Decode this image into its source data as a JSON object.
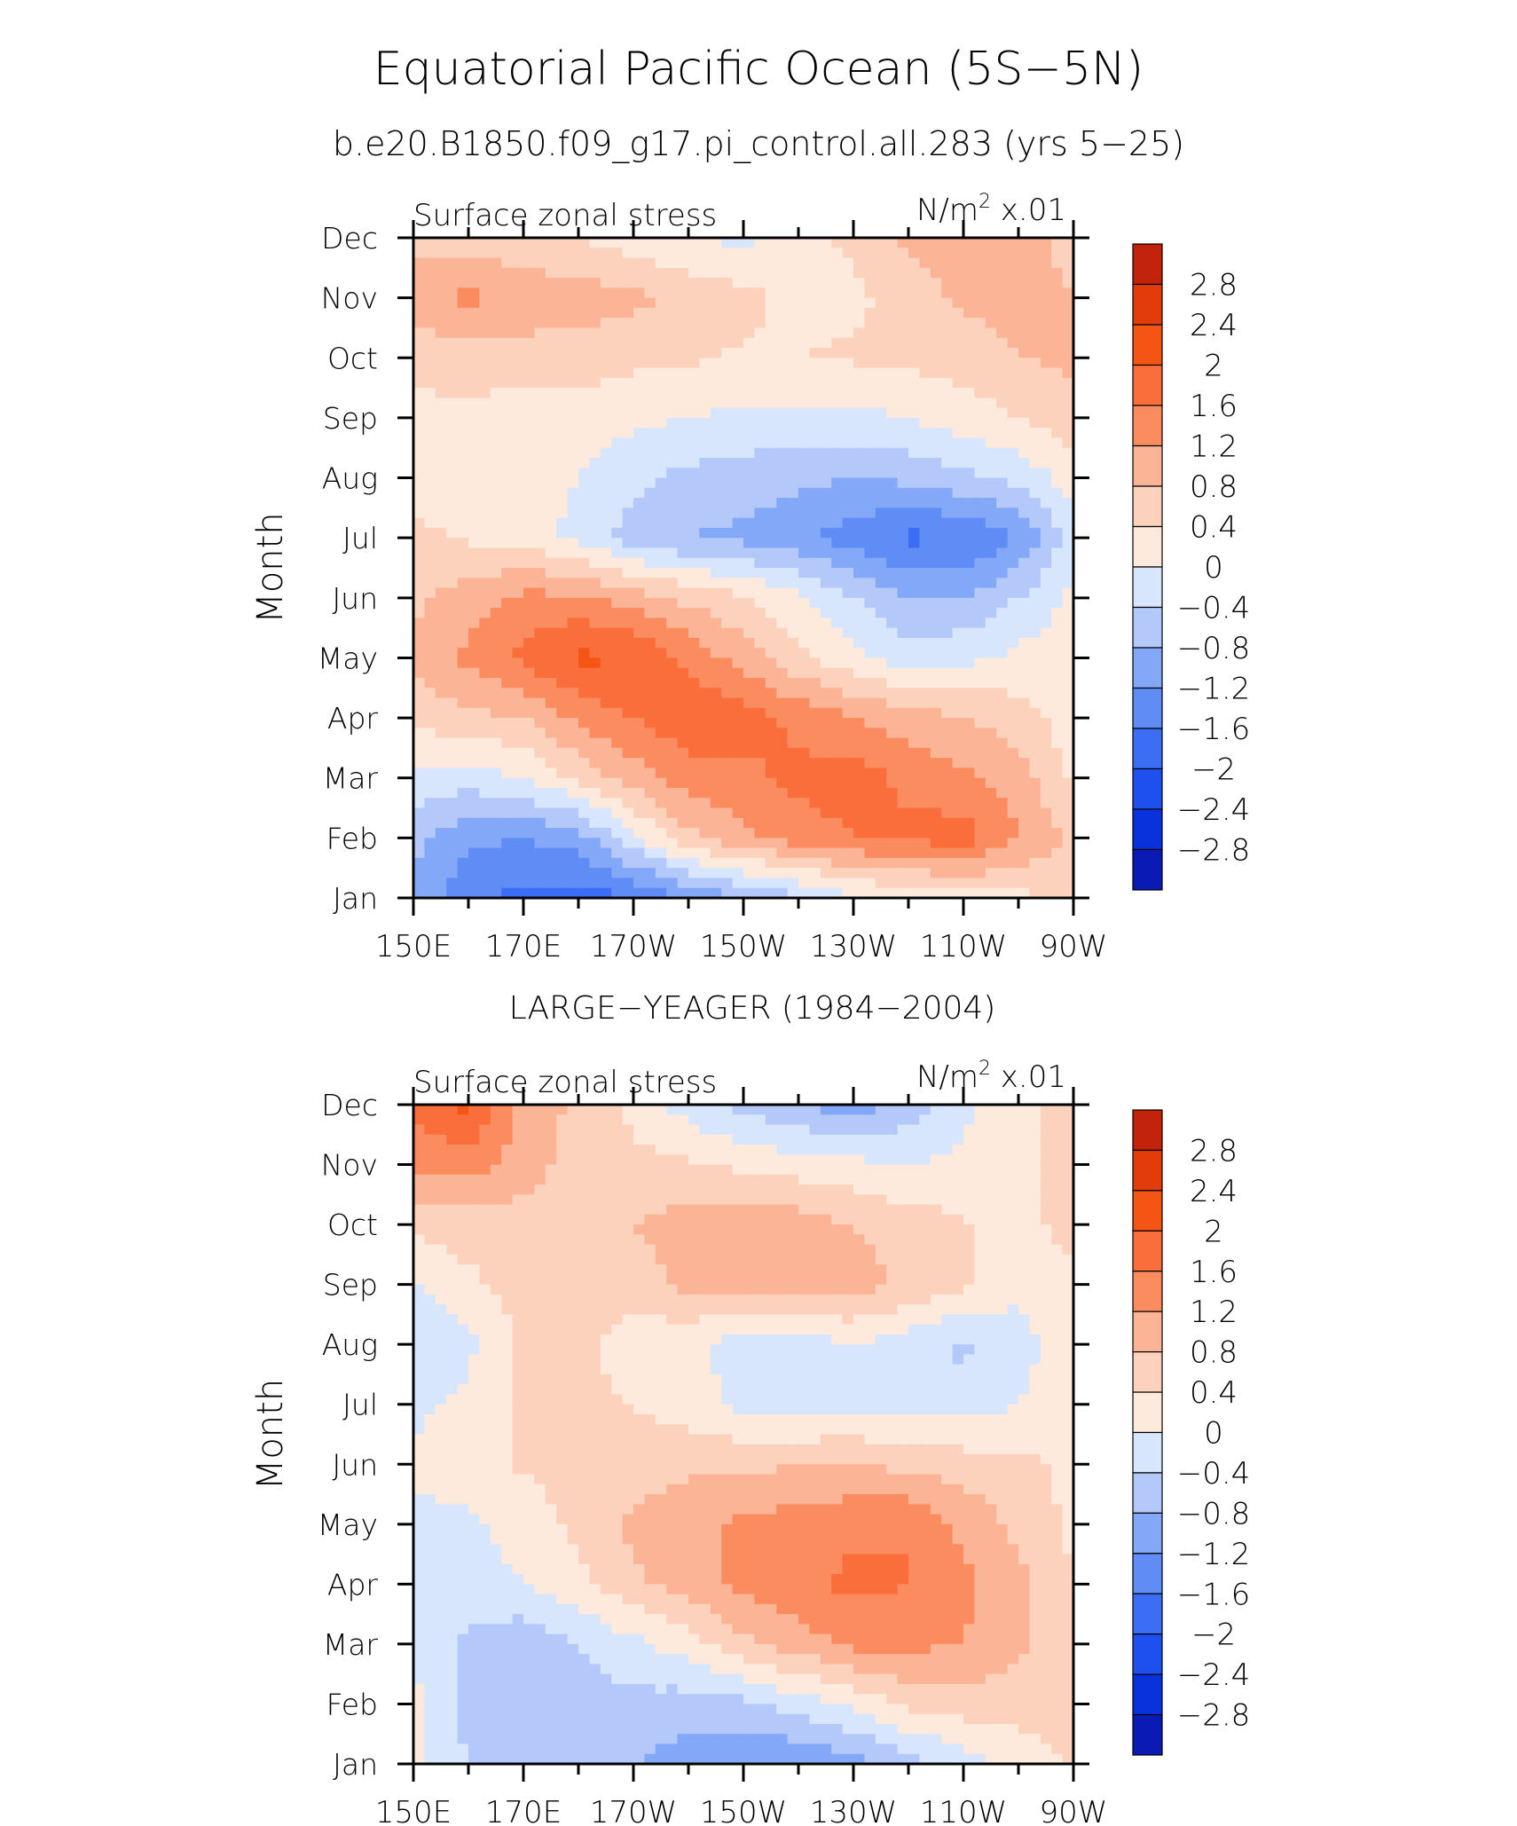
{
  "figure": {
    "title": "Equatorial Pacific Ocean (5S−5N)",
    "subtitle": "b.e20.B1850.f09_g17.pi_control.all.283 (yrs 5−25)"
  },
  "palette": {
    "level_colors": [
      "#0a0a78",
      "#0a1ab4",
      "#0a32dc",
      "#1e50f0",
      "#3c6ef5",
      "#5f8cf5",
      "#82a8f7",
      "#b4c8fa",
      "#d7e6fc",
      "#fdeadc",
      "#fcd2bc",
      "#fcb496",
      "#fa8c5f",
      "#fa6e3c",
      "#f55514",
      "#e13c0a",
      "#c3230a",
      "#8c0a0a"
    ],
    "level_labels": [
      "2.8",
      "2.4",
      "2",
      "1.6",
      "1.2",
      "0.8",
      "0.4",
      "0",
      "−0.4",
      "−0.8",
      "−1.2",
      "−1.6",
      "−2",
      "−2.4",
      "−2.8"
    ]
  },
  "chart_data": [
    {
      "type": "heatmap",
      "title": "",
      "left_label": "Surface zonal stress",
      "right_label_base": "N/m",
      "right_label_sup": "2",
      "right_label_scale": " x.01",
      "ylabel": "Month",
      "x_ticks": [
        "150E",
        "170E",
        "170W",
        "150W",
        "130W",
        "110W",
        "90W"
      ],
      "y_ticks": [
        "Jan",
        "Feb",
        "Mar",
        "Apr",
        "May",
        "Jun",
        "Jul",
        "Aug",
        "Sep",
        "Oct",
        "Nov",
        "Dec"
      ],
      "x_range_deg": [
        150,
        270
      ],
      "levels": [
        -2.8,
        -2.4,
        -2.0,
        -1.6,
        -1.2,
        -0.8,
        -0.4,
        0,
        0.4,
        0.8,
        1.2,
        1.6,
        2.0,
        2.4,
        2.8
      ],
      "lons": [
        150,
        160,
        170,
        180,
        190,
        200,
        210,
        220,
        230,
        240,
        250,
        260,
        270
      ],
      "values": [
        [
          -1.3,
          -1.9,
          -2.1,
          -2.2,
          -2.0,
          -1.6,
          -1.2,
          -0.9,
          -0.5,
          -0.3,
          -0.2,
          -0.1,
          0.1
        ],
        [
          -1.1,
          -1.5,
          -1.6,
          -1.4,
          -0.5,
          0.3,
          0.7,
          1.0,
          1.2,
          1.3,
          1.4,
          0.8,
          0.3
        ],
        [
          -0.5,
          -0.6,
          -0.4,
          0.1,
          0.6,
          1.0,
          1.1,
          1.3,
          1.4,
          1.1,
          0.9,
          0.6,
          -0.1
        ],
        [
          0.1,
          0.3,
          0.4,
          0.9,
          1.2,
          1.5,
          1.4,
          1.1,
          0.8,
          0.6,
          0.4,
          0.2,
          -0.2
        ],
        [
          0.5,
          0.9,
          1.3,
          1.7,
          1.6,
          1.1,
          0.6,
          0.1,
          -0.3,
          -0.6,
          -0.5,
          -0.3,
          -0.1
        ],
        [
          0.3,
          0.6,
          0.9,
          0.9,
          0.6,
          0.3,
          0.05,
          -0.3,
          -0.8,
          -1.2,
          -1.2,
          -0.8,
          -0.3
        ],
        [
          0.1,
          -0.05,
          -0.2,
          -0.5,
          -1.0,
          -1.2,
          -1.3,
          -1.5,
          -1.8,
          -2.1,
          -2.0,
          -1.6,
          -0.6
        ],
        [
          -0.2,
          -0.3,
          -0.3,
          -0.4,
          -0.7,
          -0.9,
          -1.0,
          -1.1,
          -1.2,
          -1.1,
          -0.9,
          -0.7,
          -0.2
        ],
        [
          -0.1,
          -0.1,
          -0.2,
          -0.2,
          -0.3,
          -0.4,
          -0.5,
          -0.5,
          -0.5,
          -0.4,
          -0.2,
          0.0,
          0.2
        ],
        [
          0.1,
          0.2,
          0.2,
          0.2,
          0.1,
          0.05,
          -0.05,
          0.0,
          0.05,
          0.1,
          0.2,
          0.4,
          0.5
        ],
        [
          0.7,
          0.9,
          0.7,
          0.6,
          0.5,
          0.3,
          0.1,
          -0.1,
          -0.1,
          0.2,
          0.5,
          0.5,
          0.4
        ],
        [
          0.2,
          0.2,
          0.1,
          0.0,
          -0.2,
          -0.4,
          -0.5,
          -0.2,
          0.1,
          0.5,
          0.6,
          0.5,
          0.3
        ]
      ]
    },
    {
      "type": "heatmap",
      "title": "LARGE−YEAGER (1984−2004)",
      "left_label": "Surface zonal stress",
      "right_label_base": "N/m",
      "right_label_sup": "2",
      "right_label_scale": " x.01",
      "ylabel": "Month",
      "x_ticks": [
        "150E",
        "170E",
        "170W",
        "150W",
        "130W",
        "110W",
        "90W"
      ],
      "y_ticks": [
        "Jan",
        "Feb",
        "Mar",
        "Apr",
        "May",
        "Jun",
        "Jul",
        "Aug",
        "Sep",
        "Oct",
        "Nov",
        "Dec"
      ],
      "x_range_deg": [
        150,
        270
      ],
      "levels": [
        -2.8,
        -2.4,
        -2.0,
        -1.6,
        -1.2,
        -0.8,
        -0.4,
        0,
        0.4,
        0.8,
        1.2,
        1.6,
        2.0,
        2.4,
        2.8
      ],
      "lons": [
        150,
        160,
        170,
        180,
        190,
        200,
        210,
        220,
        230,
        240,
        250,
        260,
        270
      ],
      "values": [
        [
          -0.3,
          -0.8,
          -1.0,
          -1.1,
          -1.2,
          -1.4,
          -1.5,
          -1.6,
          -1.4,
          -1.0,
          -0.6,
          -0.3,
          0.1
        ],
        [
          -0.3,
          -1.0,
          -1.2,
          -1.0,
          -0.9,
          -1.0,
          -0.9,
          -0.6,
          -0.3,
          0.1,
          0.2,
          0.2,
          0.1
        ],
        [
          -0.4,
          -0.9,
          -1.1,
          -0.8,
          -0.5,
          -0.2,
          0.3,
          0.6,
          0.9,
          0.9,
          0.8,
          0.5,
          0.1
        ],
        [
          -0.5,
          -0.6,
          -0.4,
          -0.1,
          0.3,
          0.6,
          0.9,
          1.1,
          1.3,
          1.2,
          0.9,
          0.5,
          0.0
        ],
        [
          -0.5,
          -0.5,
          -0.2,
          0.1,
          0.5,
          0.7,
          0.9,
          1.0,
          1.1,
          1.2,
          0.7,
          0.3,
          -0.1
        ],
        [
          -0.3,
          -0.2,
          0.05,
          0.1,
          0.2,
          0.3,
          0.3,
          0.4,
          0.4,
          0.3,
          0.2,
          0.1,
          -0.1
        ],
        [
          -0.5,
          -0.3,
          0.1,
          0.1,
          0.0,
          -0.2,
          -0.5,
          -0.6,
          -0.5,
          -0.6,
          -0.6,
          -0.4,
          -0.1
        ],
        [
          -0.8,
          -0.5,
          0.1,
          0.1,
          -0.2,
          -0.3,
          -0.6,
          -0.7,
          -0.4,
          -0.6,
          -0.9,
          -0.6,
          -0.1
        ],
        [
          -0.4,
          -0.1,
          0.2,
          0.3,
          0.2,
          0.5,
          0.6,
          0.7,
          0.6,
          0.3,
          0.1,
          -0.3,
          -0.1
        ],
        [
          0.1,
          0.2,
          0.2,
          0.3,
          0.4,
          0.6,
          0.7,
          0.6,
          0.4,
          0.2,
          0.05,
          -0.2,
          0.2
        ],
        [
          0.9,
          1.0,
          0.6,
          0.2,
          0.1,
          0.05,
          -0.1,
          -0.2,
          -0.3,
          -0.4,
          -0.3,
          -0.1,
          0.2
        ],
        [
          1.3,
          1.7,
          0.7,
          0.3,
          -0.1,
          -0.6,
          -0.9,
          -1.2,
          -1.4,
          -1.0,
          -0.5,
          -0.1,
          0.1
        ]
      ]
    }
  ]
}
